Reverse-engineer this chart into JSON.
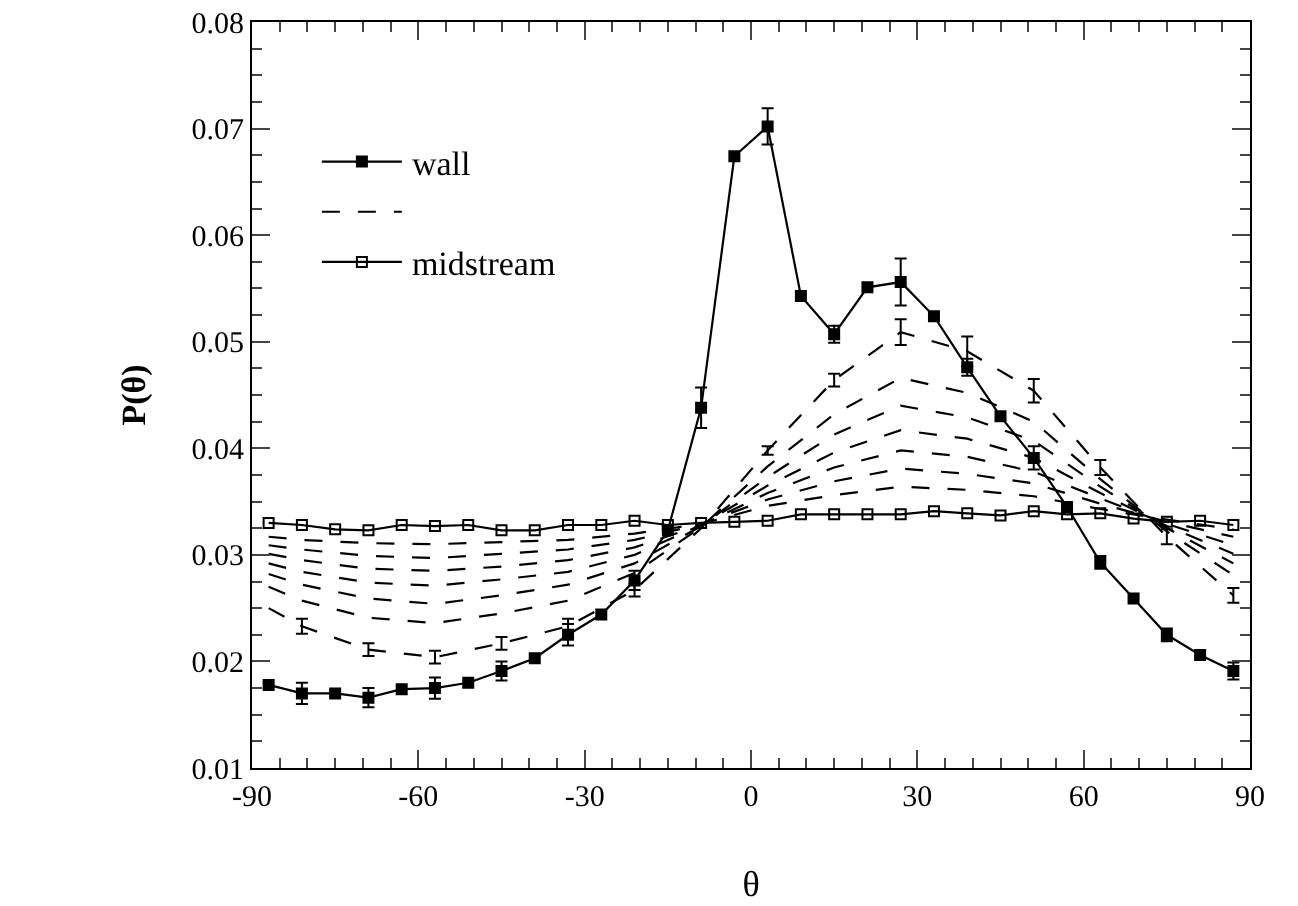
{
  "chart_data": {
    "type": "line",
    "xlabel": "θ",
    "ylabel": "P(θ)",
    "xlim": [
      -90,
      90
    ],
    "xticks": [
      -90,
      -60,
      -30,
      0,
      30,
      60,
      90
    ],
    "ylim": [
      0.01,
      0.08
    ],
    "yticks": [
      0.01,
      0.02,
      0.03,
      0.04,
      0.05,
      0.06,
      0.07,
      0.08
    ],
    "grid": false,
    "legend": "top left",
    "line_style": "solid",
    "series": [
      {
        "name": "wall",
        "color": "#000000",
        "marker": "square",
        "x": [
          -87,
          -81,
          -75,
          -69,
          -63,
          -57,
          -51,
          -45,
          -39,
          -33,
          -27,
          -21,
          -15,
          -9,
          -3,
          3,
          9,
          15,
          21,
          27,
          33,
          39,
          45,
          51,
          57,
          63,
          69,
          75,
          81,
          87
        ],
        "values": [
          0.0178,
          0.017,
          0.017,
          0.0166,
          0.0174,
          0.0175,
          0.018,
          0.0191,
          0.0203,
          0.0225,
          0.0244,
          0.0276,
          0.0323,
          0.0438,
          0.0674,
          0.0702,
          0.0543,
          0.0507,
          0.0551,
          0.0556,
          0.0524,
          0.0476,
          0.043,
          0.0391,
          0.0345,
          0.0293,
          0.0259,
          0.0225,
          0.0206,
          0.0191
        ],
        "errors": [
          null,
          0.001,
          null,
          0.0009,
          null,
          0.001,
          null,
          0.0009,
          null,
          0.001,
          null,
          0.0009,
          null,
          0.0019,
          null,
          0.0017,
          null,
          0.0008,
          null,
          0.0022,
          null,
          0.0008,
          null,
          0.0011,
          null,
          0.0006,
          null,
          0.0006,
          null,
          0.0008
        ]
      },
      {
        "color": "#000000",
        "line_style": "dashed",
        "x": [
          -87,
          -81,
          -69,
          -57,
          -45,
          -33,
          -21,
          -9,
          3,
          15,
          27,
          39,
          51,
          63,
          75,
          87
        ],
        "values": [
          0.025,
          0.0233,
          0.0211,
          0.0204,
          0.0217,
          0.0233,
          0.0267,
          0.0325,
          0.0398,
          0.0464,
          0.0509,
          0.0491,
          0.0454,
          0.0382,
          0.0317,
          0.0262
        ],
        "errors": [
          null,
          0.0007,
          0.0006,
          0.0006,
          0.0006,
          0.0007,
          0.0006,
          null,
          0.0004,
          0.0006,
          0.0012,
          0.0014,
          0.0011,
          0.0007,
          0.0007,
          0.0007
        ]
      },
      {
        "color": "#000000",
        "marker": "none",
        "line_style": "dashed",
        "x": [
          -87,
          -81,
          -69,
          -57,
          -45,
          -33,
          -21,
          -9,
          3,
          15,
          27,
          39,
          51,
          63,
          75,
          87
        ],
        "values": [
          0.027,
          0.0257,
          0.0241,
          0.0236,
          0.0245,
          0.0257,
          0.0283,
          0.0326,
          0.0383,
          0.0432,
          0.0466,
          0.0452,
          0.0425,
          0.0371,
          0.0322,
          0.0281
        ]
      },
      {
        "color": "#000000",
        "marker": "none",
        "line_style": "dashed",
        "x": [
          -87,
          -81,
          -69,
          -57,
          -45,
          -33,
          -21,
          -9,
          3,
          15,
          27,
          39,
          51,
          63,
          75,
          87
        ],
        "values": [
          0.0282,
          0.0272,
          0.0259,
          0.0254,
          0.0262,
          0.0272,
          0.0292,
          0.0327,
          0.0373,
          0.0413,
          0.044,
          0.0429,
          0.0407,
          0.0364,
          0.0325,
          0.0292
        ]
      },
      {
        "color": "#000000",
        "marker": "none",
        "line_style": "dashed",
        "x": [
          -87,
          -81,
          -69,
          -57,
          -45,
          -33,
          -21,
          -9,
          3,
          15,
          27,
          39,
          51,
          63,
          75,
          87
        ],
        "values": [
          0.0292,
          0.0284,
          0.0274,
          0.0271,
          0.0277,
          0.0284,
          0.03,
          0.0328,
          0.0365,
          0.0396,
          0.0417,
          0.0409,
          0.0391,
          0.0358,
          0.0327,
          0.0301
        ]
      },
      {
        "color": "#000000",
        "marker": "none",
        "line_style": "dashed",
        "x": [
          -87,
          -81,
          -69,
          -57,
          -45,
          -33,
          -21,
          -9,
          3,
          15,
          27,
          39,
          51,
          63,
          75,
          87
        ],
        "values": [
          0.0301,
          0.0295,
          0.0287,
          0.0285,
          0.0289,
          0.0295,
          0.0307,
          0.0328,
          0.0358,
          0.0382,
          0.0398,
          0.0392,
          0.0378,
          0.0353,
          0.0329,
          0.0309
        ]
      },
      {
        "color": "#000000",
        "marker": "none",
        "line_style": "dashed",
        "x": [
          -87,
          -81,
          -69,
          -57,
          -45,
          -33,
          -21,
          -9,
          3,
          15,
          27,
          39,
          51,
          63,
          75,
          87
        ],
        "values": [
          0.0309,
          0.0305,
          0.0299,
          0.0297,
          0.0301,
          0.0305,
          0.0314,
          0.0329,
          0.0352,
          0.0369,
          0.0381,
          0.0376,
          0.0367,
          0.0348,
          0.0331,
          0.0317
        ]
      },
      {
        "color": "#000000",
        "marker": "none",
        "line_style": "dashed",
        "x": [
          -87,
          -81,
          -69,
          -57,
          -45,
          -33,
          -21,
          -9,
          3,
          15,
          27,
          39,
          51,
          63,
          75,
          87
        ],
        "values": [
          0.0317,
          0.0314,
          0.0311,
          0.031,
          0.0312,
          0.0314,
          0.032,
          0.0329,
          0.0346,
          0.0356,
          0.0364,
          0.0361,
          0.0355,
          0.0343,
          0.0333,
          0.0324
        ]
      },
      {
        "name": "midstream",
        "color": "#000000",
        "marker": "square-open",
        "x": [
          -87,
          -81,
          -75,
          -69,
          -63,
          -57,
          -51,
          -45,
          -39,
          -33,
          -27,
          -21,
          -15,
          -9,
          -3,
          3,
          9,
          15,
          21,
          27,
          33,
          39,
          45,
          51,
          57,
          63,
          69,
          75,
          81,
          87
        ],
        "values": [
          0.033,
          0.0328,
          0.0324,
          0.0323,
          0.0328,
          0.0327,
          0.0328,
          0.0323,
          0.0323,
          0.0328,
          0.0328,
          0.0332,
          0.0328,
          0.033,
          0.0331,
          0.0332,
          0.0338,
          0.0338,
          0.0338,
          0.0338,
          0.0341,
          0.0339,
          0.0337,
          0.0341,
          0.0338,
          0.0339,
          0.0334,
          0.0331,
          0.0332,
          0.0328
        ]
      }
    ]
  }
}
